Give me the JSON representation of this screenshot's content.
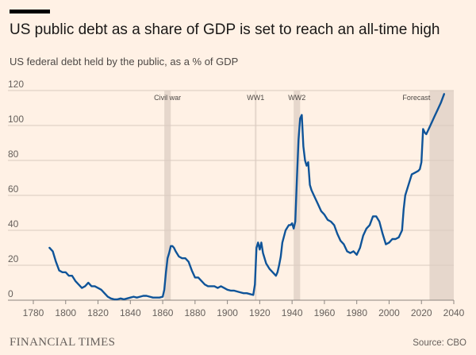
{
  "header": {
    "title": "US public debt as a share of GDP is set to reach an all-time high",
    "subtitle": "US federal debt held by the public, as a % of GDP"
  },
  "footer": {
    "brand": "FINANCIAL TIMES",
    "source": "Source: CBO"
  },
  "colors": {
    "background": "#fff1e5",
    "line": "#0f5499",
    "band": "#e6d7cc",
    "grid": "#d9cbc0",
    "text": "#66605c"
  },
  "chart_data": {
    "type": "line",
    "title": "US public debt as a share of GDP is set to reach an all-time high",
    "xlabel": "",
    "ylabel": "",
    "xlim": [
      1780,
      2040
    ],
    "ylim": [
      0,
      120
    ],
    "xticks": [
      1780,
      1800,
      1820,
      1840,
      1860,
      1880,
      1900,
      1920,
      1940,
      1960,
      1980,
      2000,
      2020,
      2040
    ],
    "yticks": [
      0,
      20,
      40,
      60,
      80,
      100,
      120
    ],
    "grid": true,
    "annotations": [
      {
        "label": "Civil war",
        "start": 1861,
        "end": 1865
      },
      {
        "label": "WW1",
        "start": 1917,
        "end": 1918
      },
      {
        "label": "WW2",
        "start": 1941,
        "end": 1945
      },
      {
        "label": "Forecast",
        "start": 2025,
        "end": 2040
      }
    ],
    "series": [
      {
        "name": "Debt held by the public (% of GDP)",
        "x": [
          1790,
          1792,
          1794,
          1796,
          1798,
          1800,
          1802,
          1804,
          1806,
          1808,
          1810,
          1812,
          1814,
          1816,
          1818,
          1820,
          1822,
          1824,
          1826,
          1828,
          1830,
          1832,
          1834,
          1836,
          1838,
          1840,
          1842,
          1844,
          1846,
          1848,
          1850,
          1852,
          1854,
          1856,
          1858,
          1860,
          1861,
          1862,
          1863,
          1864,
          1865,
          1866,
          1867,
          1868,
          1870,
          1872,
          1874,
          1876,
          1878,
          1880,
          1882,
          1884,
          1886,
          1888,
          1890,
          1892,
          1894,
          1896,
          1898,
          1900,
          1902,
          1904,
          1906,
          1908,
          1910,
          1912,
          1914,
          1916,
          1917,
          1918,
          1919,
          1920,
          1921,
          1922,
          1924,
          1926,
          1928,
          1930,
          1931,
          1932,
          1933,
          1934,
          1936,
          1938,
          1939,
          1940,
          1941,
          1942,
          1943,
          1944,
          1945,
          1946,
          1947,
          1948,
          1949,
          1950,
          1951,
          1952,
          1954,
          1956,
          1958,
          1960,
          1962,
          1964,
          1966,
          1968,
          1970,
          1972,
          1974,
          1976,
          1978,
          1980,
          1982,
          1984,
          1986,
          1988,
          1990,
          1992,
          1994,
          1996,
          1998,
          2000,
          2002,
          2004,
          2006,
          2008,
          2009,
          2010,
          2012,
          2014,
          2016,
          2018,
          2019,
          2020,
          2021,
          2022,
          2023,
          2024,
          2026,
          2028,
          2030,
          2032,
          2034
        ],
        "values": [
          30,
          28,
          22,
          17,
          16,
          16,
          14,
          14,
          11,
          9,
          7,
          8,
          10,
          8,
          8,
          7,
          6,
          4,
          2,
          1,
          0.5,
          0.5,
          1,
          0.5,
          1,
          1.5,
          2,
          1.5,
          2,
          2.5,
          2.5,
          2,
          1.5,
          1.5,
          1.5,
          2,
          6,
          16,
          24,
          27,
          31,
          31,
          30,
          28,
          25,
          24,
          24,
          22,
          17,
          13,
          13,
          11,
          9,
          8,
          8,
          8,
          7,
          8,
          7,
          6,
          5.5,
          5.5,
          5,
          4.5,
          4,
          4,
          3.5,
          3,
          9,
          30,
          33,
          29,
          33,
          27,
          21,
          18,
          16,
          14,
          16,
          20,
          25,
          33,
          40,
          43,
          43,
          44,
          41,
          45,
          70,
          92,
          104,
          106,
          88,
          80,
          77,
          79,
          66,
          63,
          59,
          55,
          51,
          49,
          46,
          45,
          43,
          38,
          34,
          32,
          28,
          27,
          28,
          26,
          30,
          37,
          41,
          43,
          48,
          48,
          45,
          38,
          32,
          33,
          35,
          35,
          36,
          40,
          52,
          60,
          66,
          72,
          73,
          74,
          75,
          79,
          98,
          96,
          95,
          97,
          101,
          105,
          109,
          113,
          118
        ]
      }
    ]
  }
}
